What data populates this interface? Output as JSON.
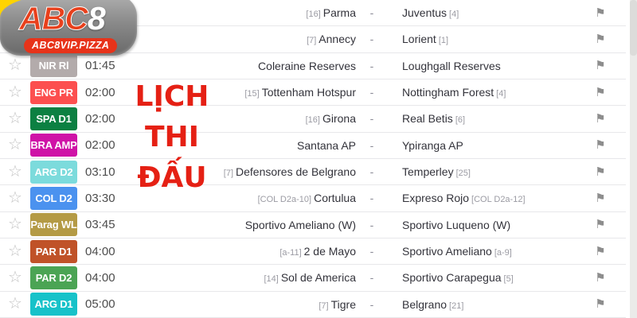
{
  "logo": {
    "brand": "ABC",
    "brand_suffix": "8",
    "domain": "ABC8VIP.PIZZA"
  },
  "overlay": {
    "lines": [
      "LỊCH",
      "THI",
      "ĐẤU"
    ],
    "color": "#e52014"
  },
  "icons": {
    "star": "☆",
    "flag": "⚑",
    "dash": "-"
  },
  "rows": [
    {
      "meta": false,
      "league": "",
      "league_color": "",
      "time": "",
      "home_rank": "[16]",
      "home": "Parma",
      "away": "Juventus",
      "away_rank": "[4]"
    },
    {
      "meta": false,
      "league": "",
      "league_color": "",
      "time": "",
      "home_rank": "[7]",
      "home": "Annecy",
      "away": "Lorient",
      "away_rank": "[1]"
    },
    {
      "meta": true,
      "league": "NIR Rl",
      "league_color": "#b3abab",
      "time": "01:45",
      "home_rank": "",
      "home": "Coleraine Reserves",
      "away": "Loughgall Reserves",
      "away_rank": ""
    },
    {
      "meta": true,
      "league": "ENG PR",
      "league_color": "#fc4f4f",
      "time": "02:00",
      "home_rank": "[15]",
      "home": "Tottenham Hotspur",
      "away": "Nottingham Forest",
      "away_rank": "[4]"
    },
    {
      "meta": true,
      "league": "SPA D1",
      "league_color": "#0c8042",
      "time": "02:00",
      "home_rank": "[16]",
      "home": "Girona",
      "away": "Real Betis",
      "away_rank": "[6]"
    },
    {
      "meta": true,
      "league": "BRA AMP",
      "league_color": "#cf13a7",
      "time": "02:00",
      "home_rank": "",
      "home": "Santana AP",
      "away": "Ypiranga AP",
      "away_rank": ""
    },
    {
      "meta": true,
      "league": "ARG D2",
      "league_color": "#7cdbdc",
      "time": "03:10",
      "home_rank": "[7]",
      "home": "Defensores de Belgrano",
      "away": "Temperley",
      "away_rank": "[25]"
    },
    {
      "meta": true,
      "league": "COL D2",
      "league_color": "#4b92ef",
      "time": "03:30",
      "home_rank": "[COL D2a-10]",
      "home": "Cortulua",
      "away": "Expreso Rojo",
      "away_rank": "[COL D2a-12]"
    },
    {
      "meta": true,
      "league": "Parag WL",
      "league_color": "#b49a45",
      "time": "03:45",
      "home_rank": "",
      "home": "Sportivo Ameliano (W)",
      "away": "Sportivo Luqueno (W)",
      "away_rank": ""
    },
    {
      "meta": true,
      "league": "PAR D1",
      "league_color": "#c05228",
      "time": "04:00",
      "home_rank": "[a-11]",
      "home": "2 de Mayo",
      "away": "Sportivo Ameliano",
      "away_rank": "[a-9]"
    },
    {
      "meta": true,
      "league": "PAR D2",
      "league_color": "#4ba454",
      "time": "04:00",
      "home_rank": "[14]",
      "home": "Sol de America",
      "away": "Sportivo Carapegua",
      "away_rank": "[5]"
    },
    {
      "meta": true,
      "league": "ARG D1",
      "league_color": "#17c2c9",
      "time": "05:00",
      "home_rank": "[7]",
      "home": "Tigre",
      "away": "Belgrano",
      "away_rank": "[21]"
    }
  ]
}
